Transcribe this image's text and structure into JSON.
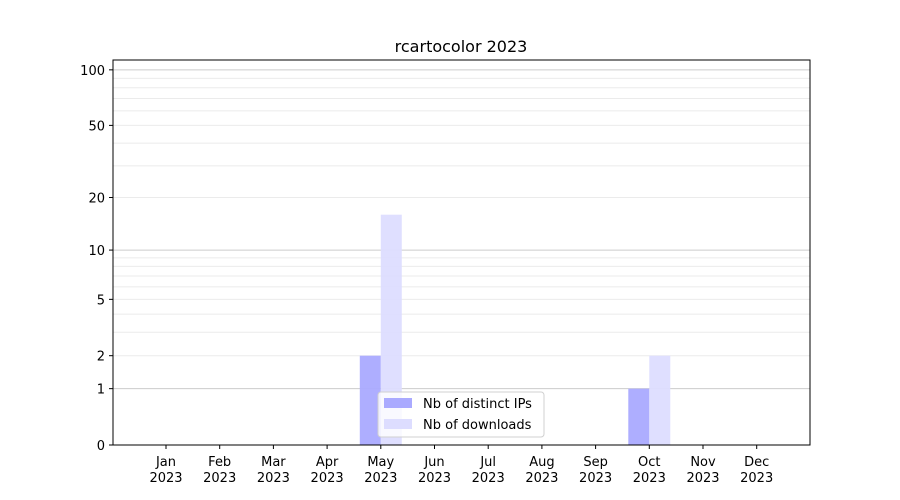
{
  "chart_data": {
    "type": "bar",
    "title": "rcartocolor 2023",
    "categories": [
      "Jan\n2023",
      "Feb\n2023",
      "Mar\n2023",
      "Apr\n2023",
      "May\n2023",
      "Jun\n2023",
      "Jul\n2023",
      "Aug\n2023",
      "Sep\n2023",
      "Oct\n2023",
      "Nov\n2023",
      "Dec\n2023"
    ],
    "series": [
      {
        "name": "Nb of distinct IPs",
        "color": "#aaaaff",
        "values": [
          0,
          0,
          0,
          0,
          2,
          0,
          0,
          0,
          0,
          1,
          0,
          0
        ]
      },
      {
        "name": "Nb of downloads",
        "color": "#ddddff",
        "values": [
          0,
          0,
          0,
          0,
          16,
          0,
          0,
          0,
          0,
          2,
          0,
          0
        ]
      }
    ],
    "yscale": "symlog (log10(1+y))",
    "ylim": [
      0,
      113
    ],
    "yticks": [
      0,
      1,
      2,
      5,
      10,
      20,
      50,
      100
    ],
    "grid": true,
    "legend": "bottom-center",
    "xlabel": "",
    "ylabel": ""
  }
}
